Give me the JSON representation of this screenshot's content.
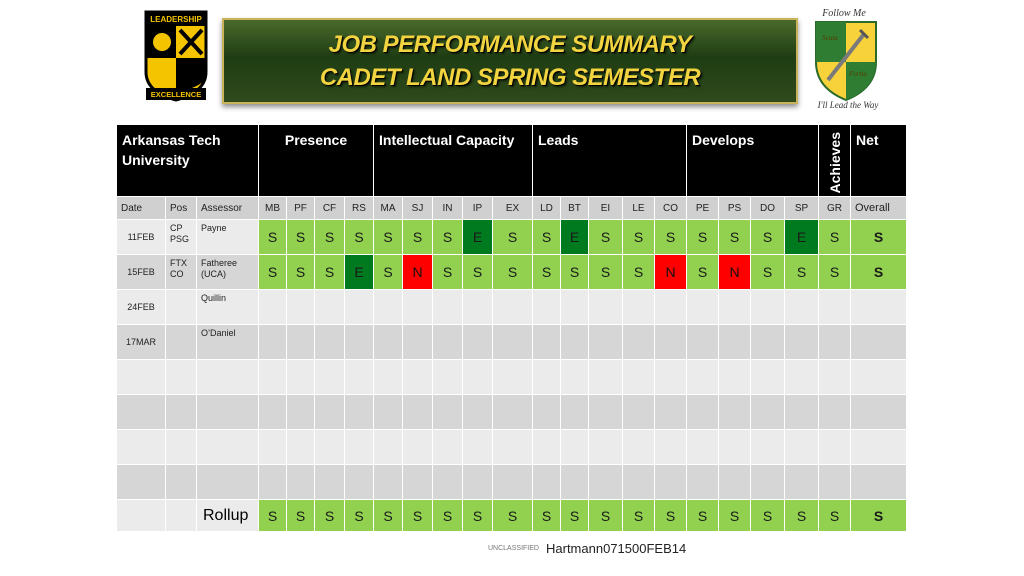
{
  "logo": {
    "top_text": "LEADERSHIP",
    "bottom_text": "EXCELLENCE"
  },
  "banner": {
    "line1": "JOB PERFORMANCE SUMMARY",
    "line2": "CADET LAND SPRING SEMESTER"
  },
  "crest": {
    "top_text": "Follow Me",
    "left_word": "Scuta",
    "right_word": "Fortia",
    "bottom_text": "I'll Lead the Way"
  },
  "table": {
    "school": "Arkansas Tech University",
    "groups": [
      "Presence",
      "Intellectual Capacity",
      "Leads",
      "Develops",
      "Achieves",
      "Net"
    ],
    "subheaders": {
      "date": "Date",
      "pos": "Pos",
      "assessor": "Assessor",
      "attributes": [
        "MB",
        "PF",
        "CF",
        "RS",
        "MA",
        "SJ",
        "IN",
        "IP",
        "EX",
        "LD",
        "BT",
        "EI",
        "LE",
        "CO",
        "PE",
        "PS",
        "DO",
        "SP",
        "GR"
      ],
      "overall": "Overall"
    },
    "rows": [
      {
        "date": "11FEB",
        "pos": "CP PSG",
        "assessor": "Payne",
        "ratings": [
          "S",
          "S",
          "S",
          "S",
          "S",
          "S",
          "S",
          "E",
          "S",
          "S",
          "E",
          "S",
          "S",
          "S",
          "S",
          "S",
          "S",
          "E",
          "S"
        ],
        "net": "S"
      },
      {
        "date": "15FEB",
        "pos": "FTX CO",
        "assessor": "Fatheree (UCA)",
        "ratings": [
          "S",
          "S",
          "S",
          "E",
          "S",
          "N",
          "S",
          "S",
          "S",
          "S",
          "S",
          "S",
          "S",
          "N",
          "S",
          "N",
          "S",
          "S",
          "S"
        ],
        "net": "S"
      },
      {
        "date": "24FEB",
        "pos": "",
        "assessor": "Quillin",
        "ratings": [],
        "net": ""
      },
      {
        "date": "17MAR",
        "pos": "",
        "assessor": "O’Daniel",
        "ratings": [],
        "net": ""
      },
      {
        "date": "",
        "pos": "",
        "assessor": "",
        "ratings": [],
        "net": ""
      },
      {
        "date": "",
        "pos": "",
        "assessor": "",
        "ratings": [],
        "net": ""
      },
      {
        "date": "",
        "pos": "",
        "assessor": "",
        "ratings": [],
        "net": ""
      },
      {
        "date": "",
        "pos": "",
        "assessor": "",
        "ratings": [],
        "net": ""
      }
    ],
    "rollup": {
      "label": "Rollup",
      "ratings": [
        "S",
        "S",
        "S",
        "S",
        "S",
        "S",
        "S",
        "S",
        "S",
        "S",
        "S",
        "S",
        "S",
        "S",
        "S",
        "S",
        "S",
        "S",
        "S"
      ],
      "net": "S"
    }
  },
  "rating_colors": {
    "S": "#92d050",
    "E": "#007a1e",
    "N": "#ff0000"
  },
  "footer": {
    "classification": "UNCLASSIFIED",
    "dtg": "Hartmann071500FEB14"
  }
}
